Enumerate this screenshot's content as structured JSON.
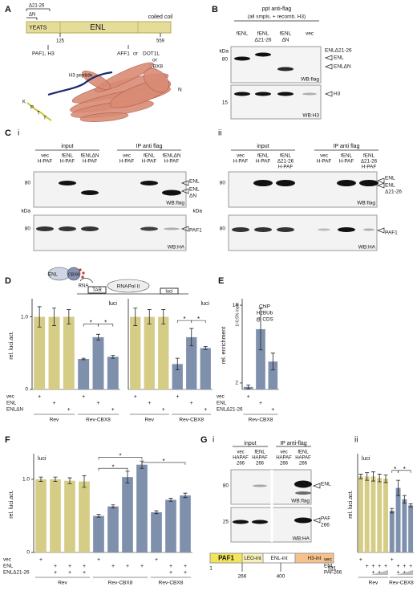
{
  "A": {
    "label": "A",
    "d21": "Δ21-26",
    "dN": "ΔN",
    "yeats": "YEATS",
    "enl": "ENL",
    "coil": "coiled coil",
    "n125": "125",
    "n559": "559",
    "pafh3": "PAF1, H3",
    "aff1": "AFF1",
    "or1": "or",
    "dot1l": "DOT1L",
    "or2": "or",
    "cbx8": "CBX8",
    "peptide": "H3 peptide",
    "nterm": "N",
    "residues": [
      "K",
      "P",
      "T",
      "T"
    ]
  },
  "B": {
    "label": "B",
    "title": "ppt anti-flag",
    "subtitle": "(all smpls. + recomb. H3)",
    "lanes": [
      [
        "fENL"
      ],
      [
        "fENL",
        "Δ21-26"
      ],
      [
        "fENL",
        "ΔN"
      ],
      [
        "vec"
      ]
    ],
    "kda": "kDa",
    "mw": [
      "80",
      "15"
    ],
    "bands": [
      "ENLΔ21-26",
      "ENL",
      "ENLΔN",
      "H3"
    ],
    "wb": [
      "WB:flag",
      "WB:H3"
    ]
  },
  "C": {
    "label": "C",
    "i": {
      "label": "i",
      "input": "input",
      "ip": "IP anti flag",
      "lanes": [
        [
          "vec",
          "H-PAF"
        ],
        [
          "fENL",
          "H-PAF"
        ],
        [
          "fENLΔN",
          "H-PAF"
        ],
        [
          "vec",
          "H-PAF"
        ],
        [
          "fENL",
          "H-PAF"
        ],
        [
          "fENLΔN",
          "H-PAF"
        ]
      ],
      "mw": [
        "80",
        "80"
      ],
      "kda": [
        "kDa",
        "kDa"
      ],
      "bands": [
        "ENL",
        "ENL",
        "ΔN",
        "PAF1"
      ],
      "wb": [
        "WB:flag",
        "WB:HA"
      ]
    },
    "ii": {
      "label": "ii",
      "input": "input",
      "ip": "IP anti flag",
      "lanes": [
        [
          "vec",
          "H-PAF"
        ],
        [
          "fENL",
          "H-PAF"
        ],
        [
          "fENL",
          "Δ21-26",
          "H-PAF"
        ],
        [
          "vec",
          "H-PAF"
        ],
        [
          "fENL",
          "H-PAF"
        ],
        [
          "fENL",
          "Δ21-26",
          "H-PAF"
        ]
      ],
      "mw": [
        "80",
        "80"
      ],
      "bands": [
        "ENL",
        "ENL",
        "Δ21-26",
        "PAF1"
      ],
      "wb": [
        "WB:flag",
        "WB:HA"
      ]
    }
  },
  "D": {
    "label": "D",
    "scheme": {
      "enl": "ENL",
      "cbx8": "CBX8",
      "rna": "RNA",
      "tar": "TAR",
      "pol": "RNAPol II",
      "luci": "luci"
    },
    "ylabel": "rel. luci.act."
  },
  "E": {
    "label": "E",
    "ylabel": "rel. enrichment",
    "unit": "1=0.5% input",
    "note": [
      "ChIP",
      "H2BUb",
      "@ CDS"
    ]
  },
  "F": {
    "label": "F",
    "ylabel": "rel. luci.act."
  },
  "G": {
    "label": "G",
    "i": {
      "label": "i",
      "input": "input",
      "ip": "IP anti-flag",
      "lanes": [
        [
          "vec",
          "HAPAF",
          "266"
        ],
        [
          "fENL",
          "HAPAF",
          "266"
        ],
        [
          "vec",
          "HAPAF",
          "266"
        ],
        [
          "fENL",
          "HAPAF",
          "266"
        ]
      ],
      "mw": [
        "80",
        "25"
      ],
      "bands": [
        "ENL",
        "PAF",
        "266"
      ],
      "wb": [
        "WB:flag",
        "WB:HA"
      ],
      "domains": [
        "PAF1",
        "LEO-int",
        "ENL-int",
        "H3-int"
      ],
      "positions": [
        "1",
        "266",
        "400",
        "531"
      ]
    },
    "ii": {
      "label": "ii",
      "ylabel": "rel. luci.act."
    }
  },
  "charts": {
    "d1": {
      "type": "bar",
      "note": "luci",
      "ylim": [
        0,
        1.25
      ],
      "yticks": [
        0,
        {
          "value": 1,
          "label": "1.0"
        }
      ],
      "values": [
        1,
        1,
        1,
        0.42,
        0.72,
        0.45
      ],
      "errors": [
        0.14,
        0.12,
        0.1,
        0.01,
        0.04,
        0.02
      ],
      "groups": [
        {
          "label": "Rev",
          "count": 3,
          "color": "#d5cc86"
        },
        {
          "label": "Rev-CBX8",
          "count": 3,
          "color": "#7f90ad"
        }
      ],
      "rows": [
        {
          "label": "vec",
          "marks": [
            "+",
            null,
            null,
            "+",
            null,
            null
          ]
        },
        {
          "label": "ENL",
          "marks": [
            null,
            "+",
            null,
            null,
            "+",
            null
          ]
        },
        {
          "label": "ENLΔN",
          "marks": [
            null,
            null,
            "+",
            null,
            null,
            "+"
          ]
        }
      ],
      "stars": [
        "*",
        "*"
      ]
    },
    "d2": {
      "type": "bar",
      "note": "luci",
      "ylim": [
        0,
        1.25
      ],
      "values": [
        1,
        1,
        1,
        0.35,
        0.72,
        0.57
      ],
      "errors": [
        0.12,
        0.1,
        0.1,
        0.08,
        0.12,
        0.02
      ],
      "groups": [
        {
          "label": "Rev",
          "count": 3,
          "color": "#d5cc86"
        },
        {
          "label": "Rev-CBX8",
          "count": 3,
          "color": "#7f90ad"
        }
      ],
      "rows": [
        {
          "marks": [
            "+",
            null,
            null,
            "+",
            null,
            null
          ]
        },
        {
          "marks": [
            null,
            "+",
            null,
            null,
            "+",
            null
          ]
        },
        {
          "marks": [
            null,
            null,
            "+",
            null,
            null,
            "+"
          ]
        }
      ],
      "stars": [
        "*",
        "*"
      ]
    },
    "e": {
      "type": "bar",
      "ylim": [
        1,
        15
      ],
      "yticks": [
        2,
        14
      ],
      "values": [
        1.4,
        10.3,
        5.3
      ],
      "errors": [
        0.3,
        3.2,
        1.3
      ],
      "groups": [
        {
          "label": "Rev-CBX8",
          "count": 3,
          "color": "#7f90ad"
        }
      ],
      "rows": [
        {
          "label": "vec",
          "marks": [
            "+",
            null,
            null
          ]
        },
        {
          "label": "ENL",
          "marks": [
            null,
            "+",
            null
          ]
        },
        {
          "label": "ENLΔ21-26",
          "marks": [
            null,
            null,
            "+"
          ]
        }
      ]
    },
    "f": {
      "type": "bar",
      "note": "luci",
      "ylim": [
        0,
        1.35
      ],
      "yticks": [
        0,
        {
          "value": 1,
          "label": "1.0"
        }
      ],
      "values": [
        1,
        1,
        0.98,
        0.97,
        0.5,
        0.63,
        1.03,
        1.2,
        0.55,
        0.72,
        0.78
      ],
      "errors": [
        0.03,
        0.03,
        0.04,
        0.08,
        0.02,
        0.02,
        0.08,
        0.05,
        0.02,
        0.02,
        0.03
      ],
      "groups": [
        {
          "label": "Rev",
          "count": 4,
          "color": "#d5cc86"
        },
        {
          "label": "Rev-CBX8",
          "count": 4,
          "color": "#7f90ad"
        },
        {
          "label": "Rev-CBX8",
          "count": 3,
          "color": "#7f90ad"
        }
      ],
      "rows": [
        {
          "label": "vec",
          "marks": [
            "+",
            null,
            null,
            null,
            "+",
            null,
            null,
            null,
            "+",
            null,
            null
          ]
        },
        {
          "label": "ENL",
          "marks": [
            null,
            "+",
            "+",
            "+",
            null,
            "+",
            "+",
            "+",
            null,
            "+",
            "+"
          ]
        },
        {
          "label": "ENLΔ21-26",
          "marks": [
            null,
            "+",
            "+",
            "+",
            null,
            null,
            null,
            null,
            null,
            "+",
            "+"
          ]
        }
      ],
      "stars": [
        "*",
        "*",
        "*"
      ]
    },
    "g": {
      "type": "bar",
      "note": "luci",
      "ylim": [
        0,
        1.3
      ],
      "values": [
        1,
        1,
        1,
        0.98,
        0.97,
        0.55,
        0.85,
        0.7,
        0.62
      ],
      "errors": [
        0.03,
        0.05,
        0.06,
        0.05,
        0.05,
        0.03,
        0.1,
        0.05,
        0.02
      ],
      "groups": [
        {
          "label": "Rev",
          "count": 5,
          "color": "#d5cc86"
        },
        {
          "label": "Rev-CBX8",
          "count": 4,
          "color": "#7f90ad"
        }
      ],
      "rows": [
        {
          "label": "vec",
          "marks": [
            "+",
            null,
            null,
            null,
            null,
            "+",
            null,
            null,
            null
          ]
        },
        {
          "label": "ENL",
          "marks": [
            null,
            "+",
            "+",
            "+",
            "+",
            null,
            "+",
            "+",
            "+"
          ]
        },
        {
          "label": "PAF266",
          "marks": [
            null,
            null,
            "+",
            "+",
            "+",
            null,
            "+",
            "+",
            "+"
          ]
        }
      ],
      "stars": [
        "*",
        "*"
      ]
    }
  }
}
